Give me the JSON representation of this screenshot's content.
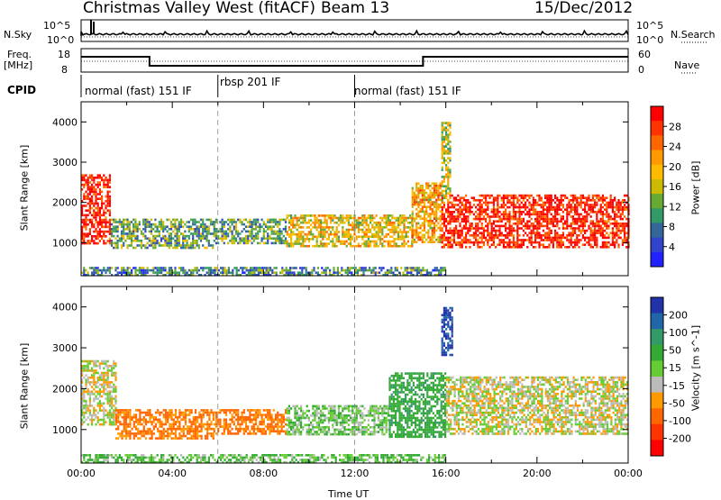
{
  "header": {
    "radar_title": "Christmas Valley West (fitACF)",
    "beam_label": "Beam 13",
    "date": "15/Dec/2012"
  },
  "top_panels": {
    "nsky_label": "N.Sky",
    "nsky_ticks": [
      "10^5",
      "10^0"
    ],
    "nsearch_label": "N.Search",
    "nsearch_ticks": [
      "10^5",
      "10^0"
    ],
    "freq_label_line1": "Freq.",
    "freq_label_line2": "[MHz]",
    "freq_ticks": [
      "18",
      "8"
    ],
    "nave_label": "Nave",
    "nave_ticks": [
      "60",
      "0"
    ],
    "cpid_label": "CPID",
    "cpid_segments": [
      {
        "label": "normal (fast) 151 IF",
        "start_h": 0,
        "end_h": 6
      },
      {
        "label": "rbsp 201 IF",
        "start_h": 6,
        "end_h": 12
      },
      {
        "label": "normal (fast) 151 IF",
        "start_h": 12,
        "end_h": 24
      }
    ]
  },
  "axes": {
    "ylabel": "Slant Range [km]",
    "xlabel": "Time UT",
    "x_ticks": [
      "00:00",
      "04:00",
      "08:00",
      "12:00",
      "16:00",
      "20:00",
      "00:00"
    ],
    "y_ticks": [
      "1000",
      "2000",
      "3000",
      "4000"
    ]
  },
  "colorbars": {
    "power": {
      "label": "Power [dB]",
      "ticks": [
        "28",
        "24",
        "20",
        "16",
        "12",
        "8",
        "4"
      ],
      "colors": [
        "#ff0000",
        "#ff3300",
        "#ff6600",
        "#ff9900",
        "#ffbb00",
        "#ccbb00",
        "#66aa33",
        "#339966",
        "#336699",
        "#3344cc",
        "#2222ff"
      ]
    },
    "velocity": {
      "label": "Velocity [m s^-1]",
      "ticks": [
        "200",
        "100",
        "50",
        "15",
        "-15",
        "-50",
        "-100",
        "-200"
      ],
      "colors": [
        "#2233aa",
        "#2266aa",
        "#339966",
        "#33aa33",
        "#66cc33",
        "#bbbbbb",
        "#ff9900",
        "#ff6600",
        "#ff3300",
        "#ff0000"
      ]
    }
  },
  "chart_data": [
    {
      "type": "heatmap",
      "title": "Power",
      "xlabel": "Time UT",
      "ylabel": "Slant Range [km]",
      "xlim": [
        0,
        24
      ],
      "ylim": [
        180,
        4500
      ],
      "colorbar": "Power [dB]",
      "regions": [
        {
          "t0": 0.0,
          "t1": 1.3,
          "r0": 1000,
          "r1": 2700,
          "value_db": 28
        },
        {
          "t0": 1.3,
          "t1": 5.8,
          "r0": 900,
          "r1": 1600,
          "value_db": 12
        },
        {
          "t0": 5.8,
          "t1": 9.0,
          "r0": 1000,
          "r1": 1600,
          "value_db": 12
        },
        {
          "t0": 9.0,
          "t1": 14.5,
          "r0": 900,
          "r1": 1700,
          "value_db": 18
        },
        {
          "t0": 14.5,
          "t1": 15.8,
          "r0": 1000,
          "r1": 2500,
          "value_db": 20
        },
        {
          "t0": 15.8,
          "t1": 24.0,
          "r0": 900,
          "r1": 2200,
          "value_db": 28
        },
        {
          "t0": 15.8,
          "t1": 16.2,
          "r0": 2000,
          "r1": 4000,
          "value_db": 16
        },
        {
          "t0": 0.0,
          "t1": 16.0,
          "r0": 200,
          "r1": 400,
          "value_db": 10
        }
      ]
    },
    {
      "type": "heatmap",
      "title": "Velocity",
      "xlabel": "Time UT",
      "ylabel": "Slant Range [km]",
      "xlim": [
        0,
        24
      ],
      "ylim": [
        180,
        4500
      ],
      "colorbar": "Velocity [m s^-1]",
      "regions": [
        {
          "t0": 0.0,
          "t1": 1.5,
          "r0": 1100,
          "r1": 2700,
          "value_ms": 0
        },
        {
          "t0": 1.5,
          "t1": 5.8,
          "r0": 800,
          "r1": 1500,
          "value_ms": -40
        },
        {
          "t0": 5.8,
          "t1": 9.0,
          "r0": 900,
          "r1": 1500,
          "value_ms": -40
        },
        {
          "t0": 9.0,
          "t1": 13.5,
          "r0": 900,
          "r1": 1600,
          "value_ms": 20
        },
        {
          "t0": 13.5,
          "t1": 16.0,
          "r0": 800,
          "r1": 2400,
          "value_ms": 60
        },
        {
          "t0": 15.8,
          "t1": 16.3,
          "r0": 2800,
          "r1": 4000,
          "value_ms": 200
        },
        {
          "t0": 16.0,
          "t1": 24.0,
          "r0": 900,
          "r1": 2300,
          "value_ms": 0
        },
        {
          "t0": 0.0,
          "t1": 16.0,
          "r0": 200,
          "r1": 400,
          "value_ms": 30
        }
      ]
    }
  ]
}
